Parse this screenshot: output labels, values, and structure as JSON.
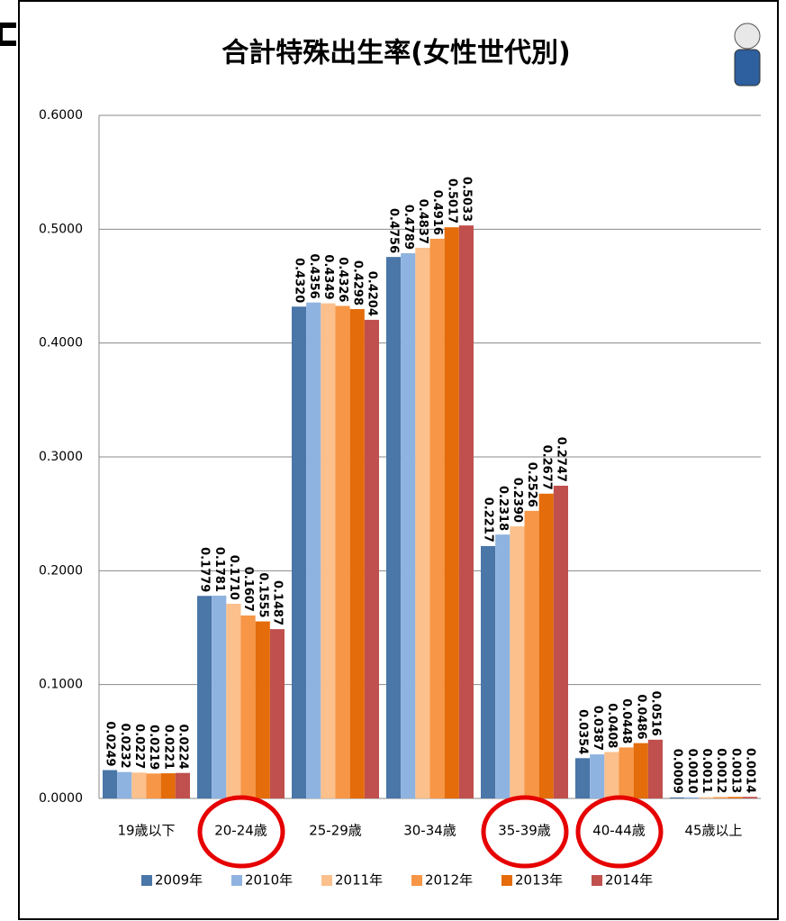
{
  "chart_data": {
    "type": "bar",
    "title": "合計特殊出生率(女性世代別)",
    "categories": [
      "19歳以下",
      "20-24歳",
      "25-29歳",
      "30-34歳",
      "35-39歳",
      "40-44歳",
      "45歳以上"
    ],
    "series": [
      {
        "name": "2009年",
        "color": "#4a76a8",
        "values": [
          0.0249,
          0.1779,
          0.432,
          0.4756,
          0.2217,
          0.0354,
          0.0009
        ],
        "value_labels": [
          "0.0249",
          "0.1779",
          "0.4320",
          "0.4756",
          "0.2217",
          "0.0354",
          "0.0009"
        ]
      },
      {
        "name": "2010年",
        "color": "#8fb3e0",
        "values": [
          0.0232,
          0.1781,
          0.4356,
          0.4789,
          0.2318,
          0.0387,
          0.001
        ],
        "value_labels": [
          "0.0232",
          "0.1781",
          "0.4356",
          "0.4789",
          "0.2318",
          "0.0387",
          "0.0010"
        ]
      },
      {
        "name": "2011年",
        "color": "#fbc08c",
        "values": [
          0.0227,
          0.171,
          0.4349,
          0.4837,
          0.239,
          0.0408,
          0.0011
        ],
        "value_labels": [
          "0.0227",
          "0.1710",
          "0.4349",
          "0.4837",
          "0.2390",
          "0.0408",
          "0.0011"
        ]
      },
      {
        "name": "2012年",
        "color": "#f79646",
        "values": [
          0.0219,
          0.1607,
          0.4326,
          0.4916,
          0.2526,
          0.0448,
          0.0012
        ],
        "value_labels": [
          "0.0219",
          "0.1607",
          "0.4326",
          "0.4916",
          "0.2526",
          "0.0448",
          "0.0012"
        ]
      },
      {
        "name": "2013年",
        "color": "#e46c0a",
        "values": [
          0.0221,
          0.1555,
          0.4298,
          0.5017,
          0.2677,
          0.0486,
          0.0013
        ],
        "value_labels": [
          "0.0221",
          "0.1555",
          "0.4298",
          "0.5017",
          "0.2677",
          "0.0486",
          "0.0013"
        ]
      },
      {
        "name": "2014年",
        "color": "#c0504d",
        "values": [
          0.0224,
          0.1487,
          0.4204,
          0.5033,
          0.2747,
          0.0516,
          0.0014
        ],
        "value_labels": [
          "0.0224",
          "0.1487",
          "0.4204",
          "0.5033",
          "0.2747",
          "0.0516",
          "0.0014"
        ]
      }
    ],
    "ylim": [
      0,
      0.6
    ],
    "yticks": [
      {
        "value": 0,
        "label": "0.0000"
      },
      {
        "value": 0.1,
        "label": "0.1000"
      },
      {
        "value": 0.2,
        "label": "0.2000"
      },
      {
        "value": 0.3,
        "label": "0.3000"
      },
      {
        "value": 0.4,
        "label": "0.4000"
      },
      {
        "value": 0.5,
        "label": "0.5000"
      },
      {
        "value": 0.6,
        "label": "0.6000"
      }
    ],
    "grid": true
  }
}
